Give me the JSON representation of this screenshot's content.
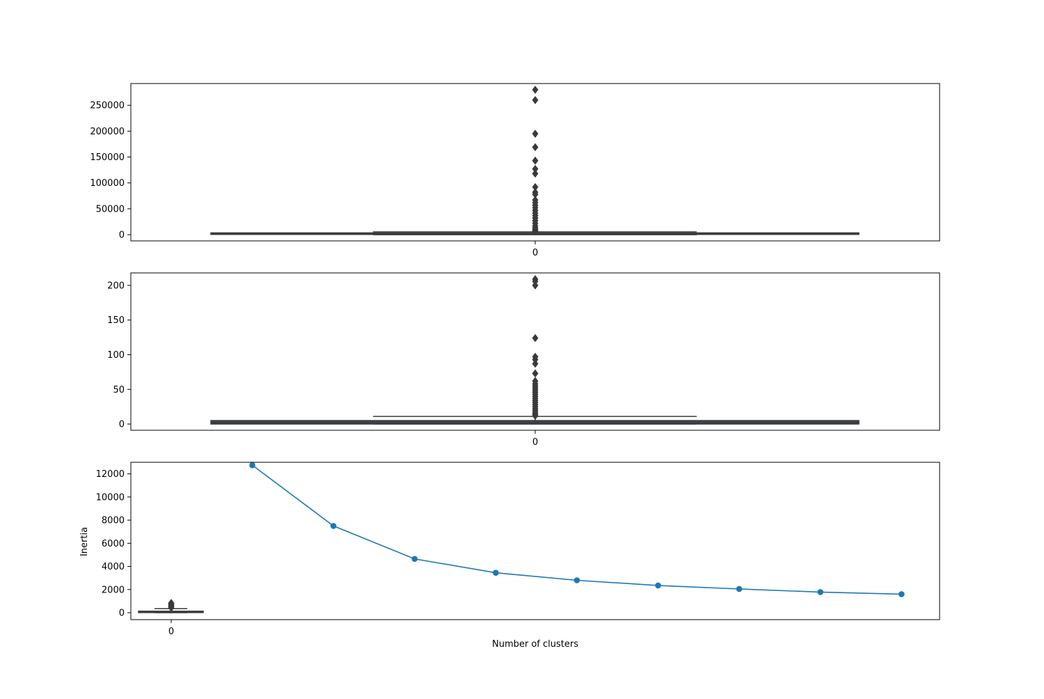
{
  "chart_data": [
    {
      "type": "box",
      "ylim": [
        -12000,
        292000
      ],
      "yticks": [
        0,
        50000,
        100000,
        150000,
        200000,
        250000
      ],
      "xticks": [
        "0"
      ],
      "box": {
        "q1": 500,
        "median": 1200,
        "q3": 3500,
        "whisker_low": 0,
        "whisker_high": 5500
      },
      "outliers": [
        280000,
        260000,
        195000,
        169000,
        143000,
        127000,
        118000,
        92000,
        82000,
        78000,
        67000,
        62000,
        57000,
        52000,
        47000,
        42000,
        37000,
        32000,
        27000,
        22000,
        17000,
        13000,
        10000,
        8000,
        6500
      ],
      "colors": {
        "box_fill": "#3a4756",
        "line": "#3a3a3a"
      }
    },
    {
      "type": "box",
      "ylim": [
        -9,
        218
      ],
      "yticks": [
        0,
        50,
        100,
        150,
        200
      ],
      "xticks": [
        "0"
      ],
      "box": {
        "q1": 0,
        "median": 2,
        "q3": 5,
        "whisker_low": 0,
        "whisker_high": 11
      },
      "outliers": [
        209,
        206,
        200,
        124,
        97,
        93,
        87,
        73,
        62,
        58,
        55,
        52,
        49,
        46,
        43,
        40,
        37,
        34,
        31,
        28,
        25,
        22,
        19,
        16,
        14,
        12
      ],
      "colors": {
        "box_fill": "#3a4756",
        "line": "#3a3a3a"
      }
    },
    {
      "type": "line",
      "xlabel": "Number of clusters",
      "ylabel": "Inertia",
      "ylim": [
        -600,
        13000
      ],
      "yticks": [
        0,
        2000,
        4000,
        6000,
        8000,
        10000,
        12000
      ],
      "xticks": [
        "0"
      ],
      "series": [
        {
          "values": [
            12750,
            7500,
            4650,
            3450,
            2800,
            2350,
            2050,
            1780,
            1600
          ]
        }
      ],
      "box": {
        "q1": 30,
        "median": 70,
        "q3": 130,
        "whisker_low": 0,
        "whisker_high": 350
      },
      "outliers": [
        420,
        520,
        600,
        680,
        760,
        840
      ],
      "colors": {
        "line": "#1f77b4",
        "box_fill": "#3a4756"
      }
    }
  ]
}
